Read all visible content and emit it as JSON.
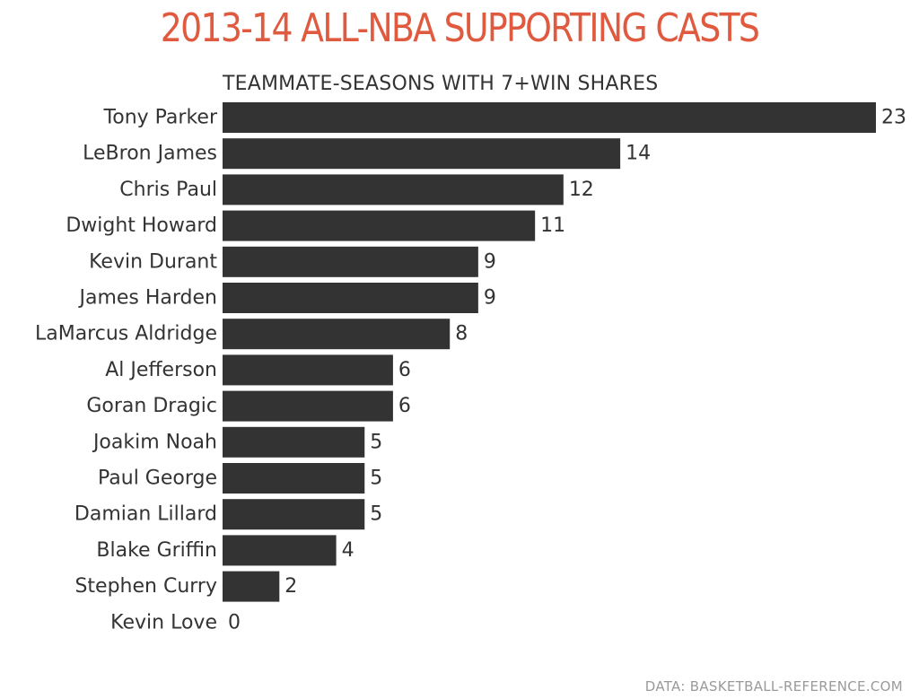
{
  "header": {
    "title": "2013-14 ALL-NBA SUPPORTING CASTS"
  },
  "chart_data": {
    "type": "bar",
    "orientation": "horizontal",
    "title": "2013-14 ALL-NBA SUPPORTING CASTS",
    "subtitle": "TEAMMATE-SEASONS WITH 7+WIN SHARES",
    "categories": [
      "Tony Parker",
      "LeBron James",
      "Chris Paul",
      "Dwight Howard",
      "Kevin Durant",
      "James Harden",
      "LaMarcus Aldridge",
      "Al Jefferson",
      "Goran Dragic",
      "Joakim Noah",
      "Paul George",
      "Damian Lillard",
      "Blake Griffin",
      "Stephen Curry",
      "Kevin Love"
    ],
    "values": [
      23,
      14,
      12,
      11,
      9,
      9,
      8,
      6,
      6,
      5,
      5,
      5,
      4,
      2,
      0
    ],
    "xlim": [
      0,
      23
    ],
    "grid": false,
    "bar_color": "#333333",
    "title_color": "#e05a3f"
  },
  "footer": {
    "source": "DATA: BASKETBALL-REFERENCE.COM"
  }
}
